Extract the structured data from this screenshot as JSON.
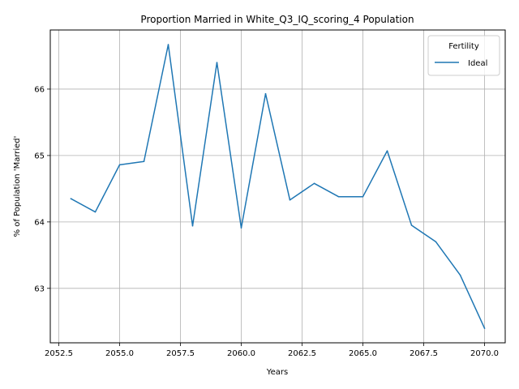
{
  "chart_data": {
    "type": "line",
    "title": "Proportion Married in White_Q3_IQ_scoring_4 Population",
    "xlabel": "Years",
    "ylabel": "% of Population 'Married'",
    "xlim": [
      2052.15,
      2070.85
    ],
    "ylim": [
      62.18,
      66.89
    ],
    "x_ticks": [
      2052.5,
      2055.0,
      2057.5,
      2060.0,
      2062.5,
      2065.0,
      2067.5,
      2070.0
    ],
    "x_tick_labels": [
      "2052.5",
      "2055.0",
      "2057.5",
      "2060.0",
      "2062.5",
      "2065.0",
      "2067.5",
      "2070.0"
    ],
    "y_ticks": [
      63,
      64,
      65,
      66
    ],
    "y_tick_labels": [
      "63",
      "64",
      "65",
      "66"
    ],
    "grid": true,
    "legend": {
      "title": "Fertility",
      "placement": "top-right"
    },
    "series": [
      {
        "name": "Ideal",
        "color": "#1f77b4",
        "x": [
          2053,
          2054,
          2055,
          2056,
          2057,
          2058,
          2059,
          2060,
          2061,
          2062,
          2063,
          2064,
          2065,
          2066,
          2067,
          2068,
          2069,
          2070
        ],
        "y": [
          64.35,
          64.15,
          64.86,
          64.91,
          66.67,
          63.94,
          66.4,
          63.91,
          65.93,
          64.33,
          64.58,
          64.38,
          64.38,
          65.07,
          63.95,
          63.7,
          63.2,
          62.4
        ]
      }
    ]
  }
}
